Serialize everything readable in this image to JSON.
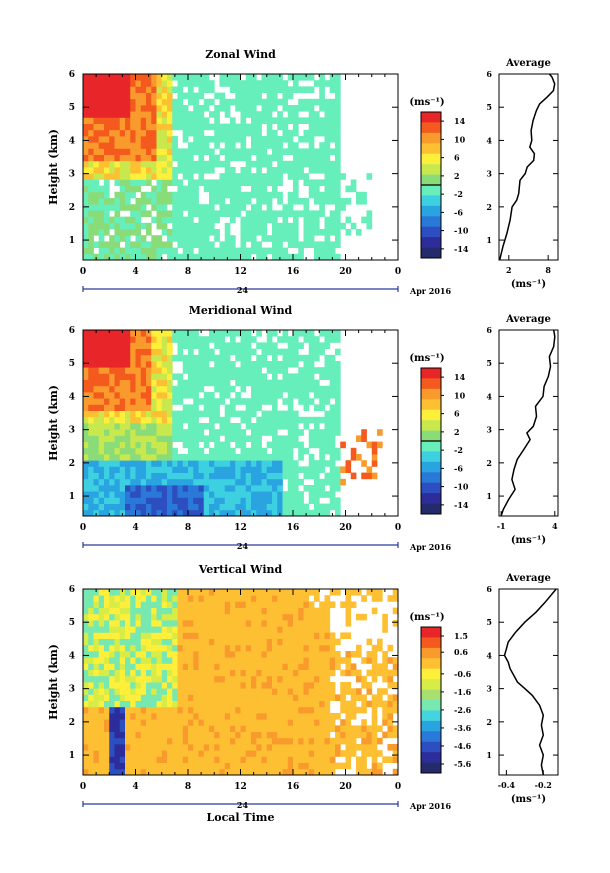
{
  "chart_data": [
    {
      "type": "heatmap",
      "title": "Zonal Wind",
      "xlabel": "",
      "ylabel": "Height (km)",
      "xlim": [
        0,
        24
      ],
      "ylim": [
        0.4,
        6
      ],
      "xticks": [
        "0",
        "4",
        "8",
        "12",
        "16",
        "20",
        "0"
      ],
      "yticks": [
        "1",
        "2",
        "3",
        "4",
        "5",
        "6"
      ],
      "date_row": {
        "day": "24",
        "month_label": "Apr 2016"
      },
      "colorbar": {
        "unit": "(ms⁻¹)",
        "range": [
          -16,
          16
        ],
        "ticks": [
          "14",
          "10",
          "6",
          "2",
          "-2",
          "-6",
          "-10",
          "-14"
        ],
        "colors": [
          "#e8262a",
          "#f45a1e",
          "#f99a2c",
          "#fec033",
          "#fef03a",
          "#c8e84e",
          "#8adc78",
          "#66eebb",
          "#3cd0e0",
          "#2aa4e0",
          "#2a78d8",
          "#2c4ec0",
          "#2c2c9a",
          "#242a6a"
        ]
      },
      "field_description": "strong positive (10-16) at 0-5h above 3 km, near 0 elsewhere, dense contours 5-19h",
      "profile": {
        "title": "Average",
        "xlabel": "(ms⁻¹)",
        "xticks": [
          "2",
          "8"
        ],
        "xlim": [
          0.5,
          9.5
        ],
        "yticks": [
          "1",
          "2",
          "3",
          "4",
          "5",
          "6"
        ],
        "height": [
          0.4,
          0.8,
          1.2,
          1.6,
          2.0,
          2.2,
          2.4,
          2.8,
          3.0,
          3.2,
          3.4,
          3.6,
          3.8,
          4.0,
          4.3,
          4.6,
          4.9,
          5.1,
          5.3,
          5.5,
          5.7,
          5.9,
          6.0
        ],
        "value": [
          0.6,
          1.1,
          1.7,
          2.2,
          2.5,
          3.2,
          3.5,
          3.7,
          4.5,
          4.8,
          5.8,
          5.9,
          5.2,
          5.5,
          5.4,
          5.7,
          6.2,
          6.7,
          7.8,
          8.8,
          9.0,
          8.6,
          8.2
        ]
      }
    },
    {
      "type": "heatmap",
      "title": "Meridional Wind",
      "xlabel": "",
      "ylabel": "Height (km)",
      "xlim": [
        0,
        24
      ],
      "ylim": [
        0.4,
        6
      ],
      "xticks": [
        "0",
        "4",
        "8",
        "12",
        "16",
        "20",
        "0"
      ],
      "yticks": [
        "1",
        "2",
        "3",
        "4",
        "5",
        "6"
      ],
      "date_row": {
        "day": "24",
        "month_label": "Apr 2016"
      },
      "colorbar": {
        "unit": "(ms⁻¹)",
        "range": [
          -16,
          16
        ],
        "ticks": [
          "14",
          "10",
          "6",
          "2",
          "-2",
          "-6",
          "-10",
          "-14"
        ],
        "colors": [
          "#e8262a",
          "#f45a1e",
          "#f99a2c",
          "#fec033",
          "#fef03a",
          "#c8e84e",
          "#8adc78",
          "#66eebb",
          "#3cd0e0",
          "#2aa4e0",
          "#2a78d8",
          "#2c4ec0",
          "#2c2c9a",
          "#242a6a"
        ]
      },
      "field_description": "positive (8-14) at 0-4h above 3.5 km, negative near surface 0-15h",
      "profile": {
        "title": "Average",
        "xlabel": "(ms⁻¹)",
        "xticks": [
          "-1",
          "4"
        ],
        "xlim": [
          -1.2,
          4.3
        ],
        "yticks": [
          "1",
          "2",
          "3",
          "4",
          "5",
          "6"
        ],
        "height": [
          0.4,
          0.6,
          0.9,
          1.2,
          1.5,
          1.8,
          2.1,
          2.4,
          2.7,
          2.9,
          3.1,
          3.4,
          3.7,
          4.0,
          4.3,
          4.6,
          4.9,
          5.2,
          5.5,
          5.8,
          6.0
        ],
        "value": [
          -1.0,
          -0.8,
          -0.3,
          0.3,
          0.0,
          0.2,
          0.5,
          1.1,
          1.7,
          1.4,
          2.0,
          2.3,
          2.2,
          2.9,
          3.0,
          3.4,
          3.6,
          3.5,
          3.9,
          4.0,
          3.9
        ]
      }
    },
    {
      "type": "heatmap",
      "title": "Vertical Wind",
      "xlabel": "Local Time",
      "ylabel": "Height (km)",
      "xlim": [
        0,
        24
      ],
      "ylim": [
        0.4,
        6
      ],
      "xticks": [
        "0",
        "4",
        "8",
        "12",
        "16",
        "20",
        "0"
      ],
      "yticks": [
        "1",
        "2",
        "3",
        "4",
        "5",
        "6"
      ],
      "date_row": {
        "day": "24",
        "month_label": "Apr 2016"
      },
      "colorbar": {
        "unit": "(ms⁻¹)",
        "range": [
          -6.1,
          2.0
        ],
        "ticks": [
          "1.5",
          "0.6",
          "-0.6",
          "-1.6",
          "-2.6",
          "-3.6",
          "-4.6",
          "-5.6"
        ],
        "colors": [
          "#e8262a",
          "#f45a1e",
          "#f99a2c",
          "#fec033",
          "#fef03a",
          "#d8ec48",
          "#a8e070",
          "#76e8b0",
          "#44d4e0",
          "#2aa4e0",
          "#2a78d8",
          "#2c4ec0",
          "#2c2c9a",
          "#242a6a"
        ]
      },
      "field_description": "mostly -0.5 to 0.5 (orange), negative column near 2h, yellow-green 0-7h above 3 km",
      "profile": {
        "title": "Average",
        "xlabel": "(ms⁻¹)",
        "xticks": [
          "-0.4",
          "-0.2"
        ],
        "xlim": [
          -0.44,
          -0.12
        ],
        "yticks": [
          "1",
          "2",
          "3",
          "4",
          "5",
          "6"
        ],
        "height": [
          0.4,
          0.7,
          1.0,
          1.3,
          1.6,
          1.9,
          2.2,
          2.5,
          2.8,
          3.0,
          3.2,
          3.4,
          3.6,
          3.8,
          4.0,
          4.2,
          4.4,
          4.7,
          5.0,
          5.3,
          5.6,
          6.0
        ],
        "value": [
          -0.2,
          -0.21,
          -0.2,
          -0.22,
          -0.2,
          -0.21,
          -0.2,
          -0.22,
          -0.26,
          -0.3,
          -0.34,
          -0.36,
          -0.38,
          -0.39,
          -0.41,
          -0.4,
          -0.39,
          -0.35,
          -0.3,
          -0.24,
          -0.19,
          -0.13
        ]
      }
    }
  ]
}
